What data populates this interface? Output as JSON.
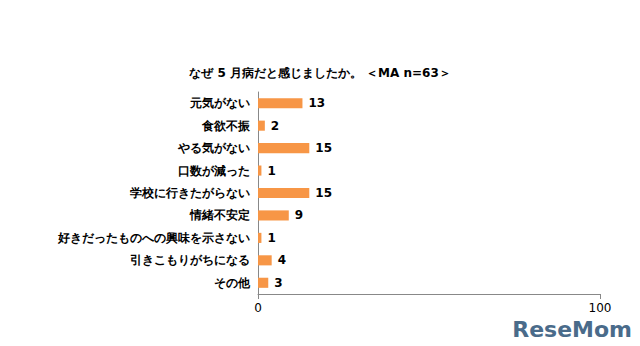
{
  "chart_data": {
    "type": "bar",
    "orientation": "horizontal",
    "title": "なぜ 5 月病だと感じましたか。 ＜MA n=63＞",
    "categories": [
      "元気がない",
      "食欲不振",
      "やる気がない",
      "口数が減った",
      "学校に行きたがらない",
      "情緒不安定",
      "好きだったものへの興味を示さない",
      "引きこもりがちになる",
      "その他"
    ],
    "values": [
      13,
      2,
      15,
      1,
      15,
      9,
      1,
      4,
      3
    ],
    "color": "#f79646",
    "xlim": [
      0,
      100
    ],
    "xticks": [
      0,
      100
    ],
    "grid": false,
    "data_labels": true,
    "annotations": [
      "ReseMom"
    ]
  }
}
